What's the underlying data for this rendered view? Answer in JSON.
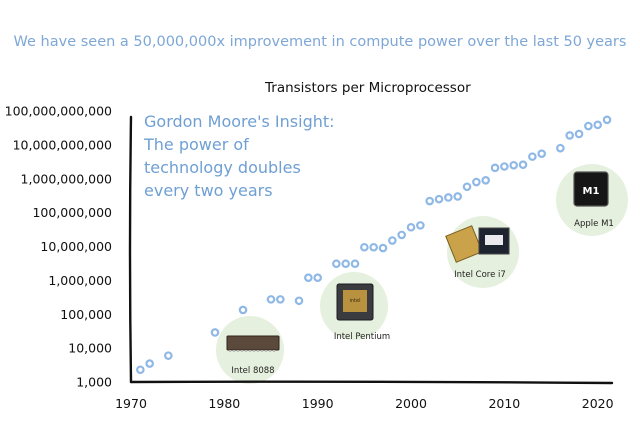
{
  "headline": "We have seen a 50,000,000x improvement in compute power over the last 50 years",
  "insight": {
    "lines": [
      "Gordon Moore's Insight:",
      "The power of",
      "technology doubles",
      "every two years"
    ]
  },
  "colors": {
    "headline": "#7ea7d6",
    "insight": "#6f9fd3",
    "marker": "#8fb8e6",
    "chip_circle": "#e6f0df"
  },
  "chips": [
    {
      "label": "Intel 8088",
      "icon": "intel-8088-chip-icon"
    },
    {
      "label": "Intel Pentium",
      "icon": "intel-pentium-chip-icon"
    },
    {
      "label": "Intel Core i7",
      "icon": "intel-core-i7-chip-icon"
    },
    {
      "label": "Apple M1",
      "icon": "apple-m1-chip-icon",
      "chip_text": "M1"
    }
  ],
  "chart_data": {
    "type": "scatter",
    "title": "Transistors per Microprocessor",
    "xlabel": "",
    "ylabel": "",
    "x_ticks": [
      "1970",
      "1980",
      "1990",
      "2000",
      "2010",
      "2020"
    ],
    "y_ticks": [
      "1,000",
      "10,000",
      "100,000",
      "1,000,000",
      "10,000,000",
      "100,000,000",
      "1,000,000,000",
      "10,000,000,000",
      "100,000,000,000"
    ],
    "xlim": [
      1970,
      2022
    ],
    "ylim": [
      1000,
      100000000000
    ],
    "y_scale": "log",
    "grid": false,
    "series": [
      {
        "points": [
          [
            1971,
            2300
          ],
          [
            1972,
            3500
          ],
          [
            1974,
            6000
          ],
          [
            1979,
            29000
          ],
          [
            1982,
            134000
          ],
          [
            1985,
            275000
          ],
          [
            1986,
            275000
          ],
          [
            1988,
            250000
          ],
          [
            1989,
            1200000
          ],
          [
            1990,
            1200000
          ],
          [
            1992,
            3100000
          ],
          [
            1993,
            3100000
          ],
          [
            1994,
            3100000
          ],
          [
            1995,
            9500000
          ],
          [
            1996,
            9500000
          ],
          [
            1997,
            9000000
          ],
          [
            1998,
            15000000
          ],
          [
            1999,
            22000000
          ],
          [
            2000,
            37000000
          ],
          [
            2001,
            42000000
          ],
          [
            2002,
            220000000
          ],
          [
            2003,
            250000000
          ],
          [
            2004,
            280000000
          ],
          [
            2005,
            300000000
          ],
          [
            2006,
            580000000
          ],
          [
            2007,
            800000000
          ],
          [
            2008,
            900000000
          ],
          [
            2009,
            2100000000
          ],
          [
            2010,
            2300000000
          ],
          [
            2011,
            2500000000
          ],
          [
            2012,
            2600000000
          ],
          [
            2013,
            4500000000
          ],
          [
            2014,
            5500000000
          ],
          [
            2016,
            8000000000
          ],
          [
            2017,
            19000000000
          ],
          [
            2018,
            21000000000
          ],
          [
            2019,
            36000000000
          ],
          [
            2020,
            39000000000
          ],
          [
            2021,
            55000000000
          ]
        ]
      }
    ]
  }
}
